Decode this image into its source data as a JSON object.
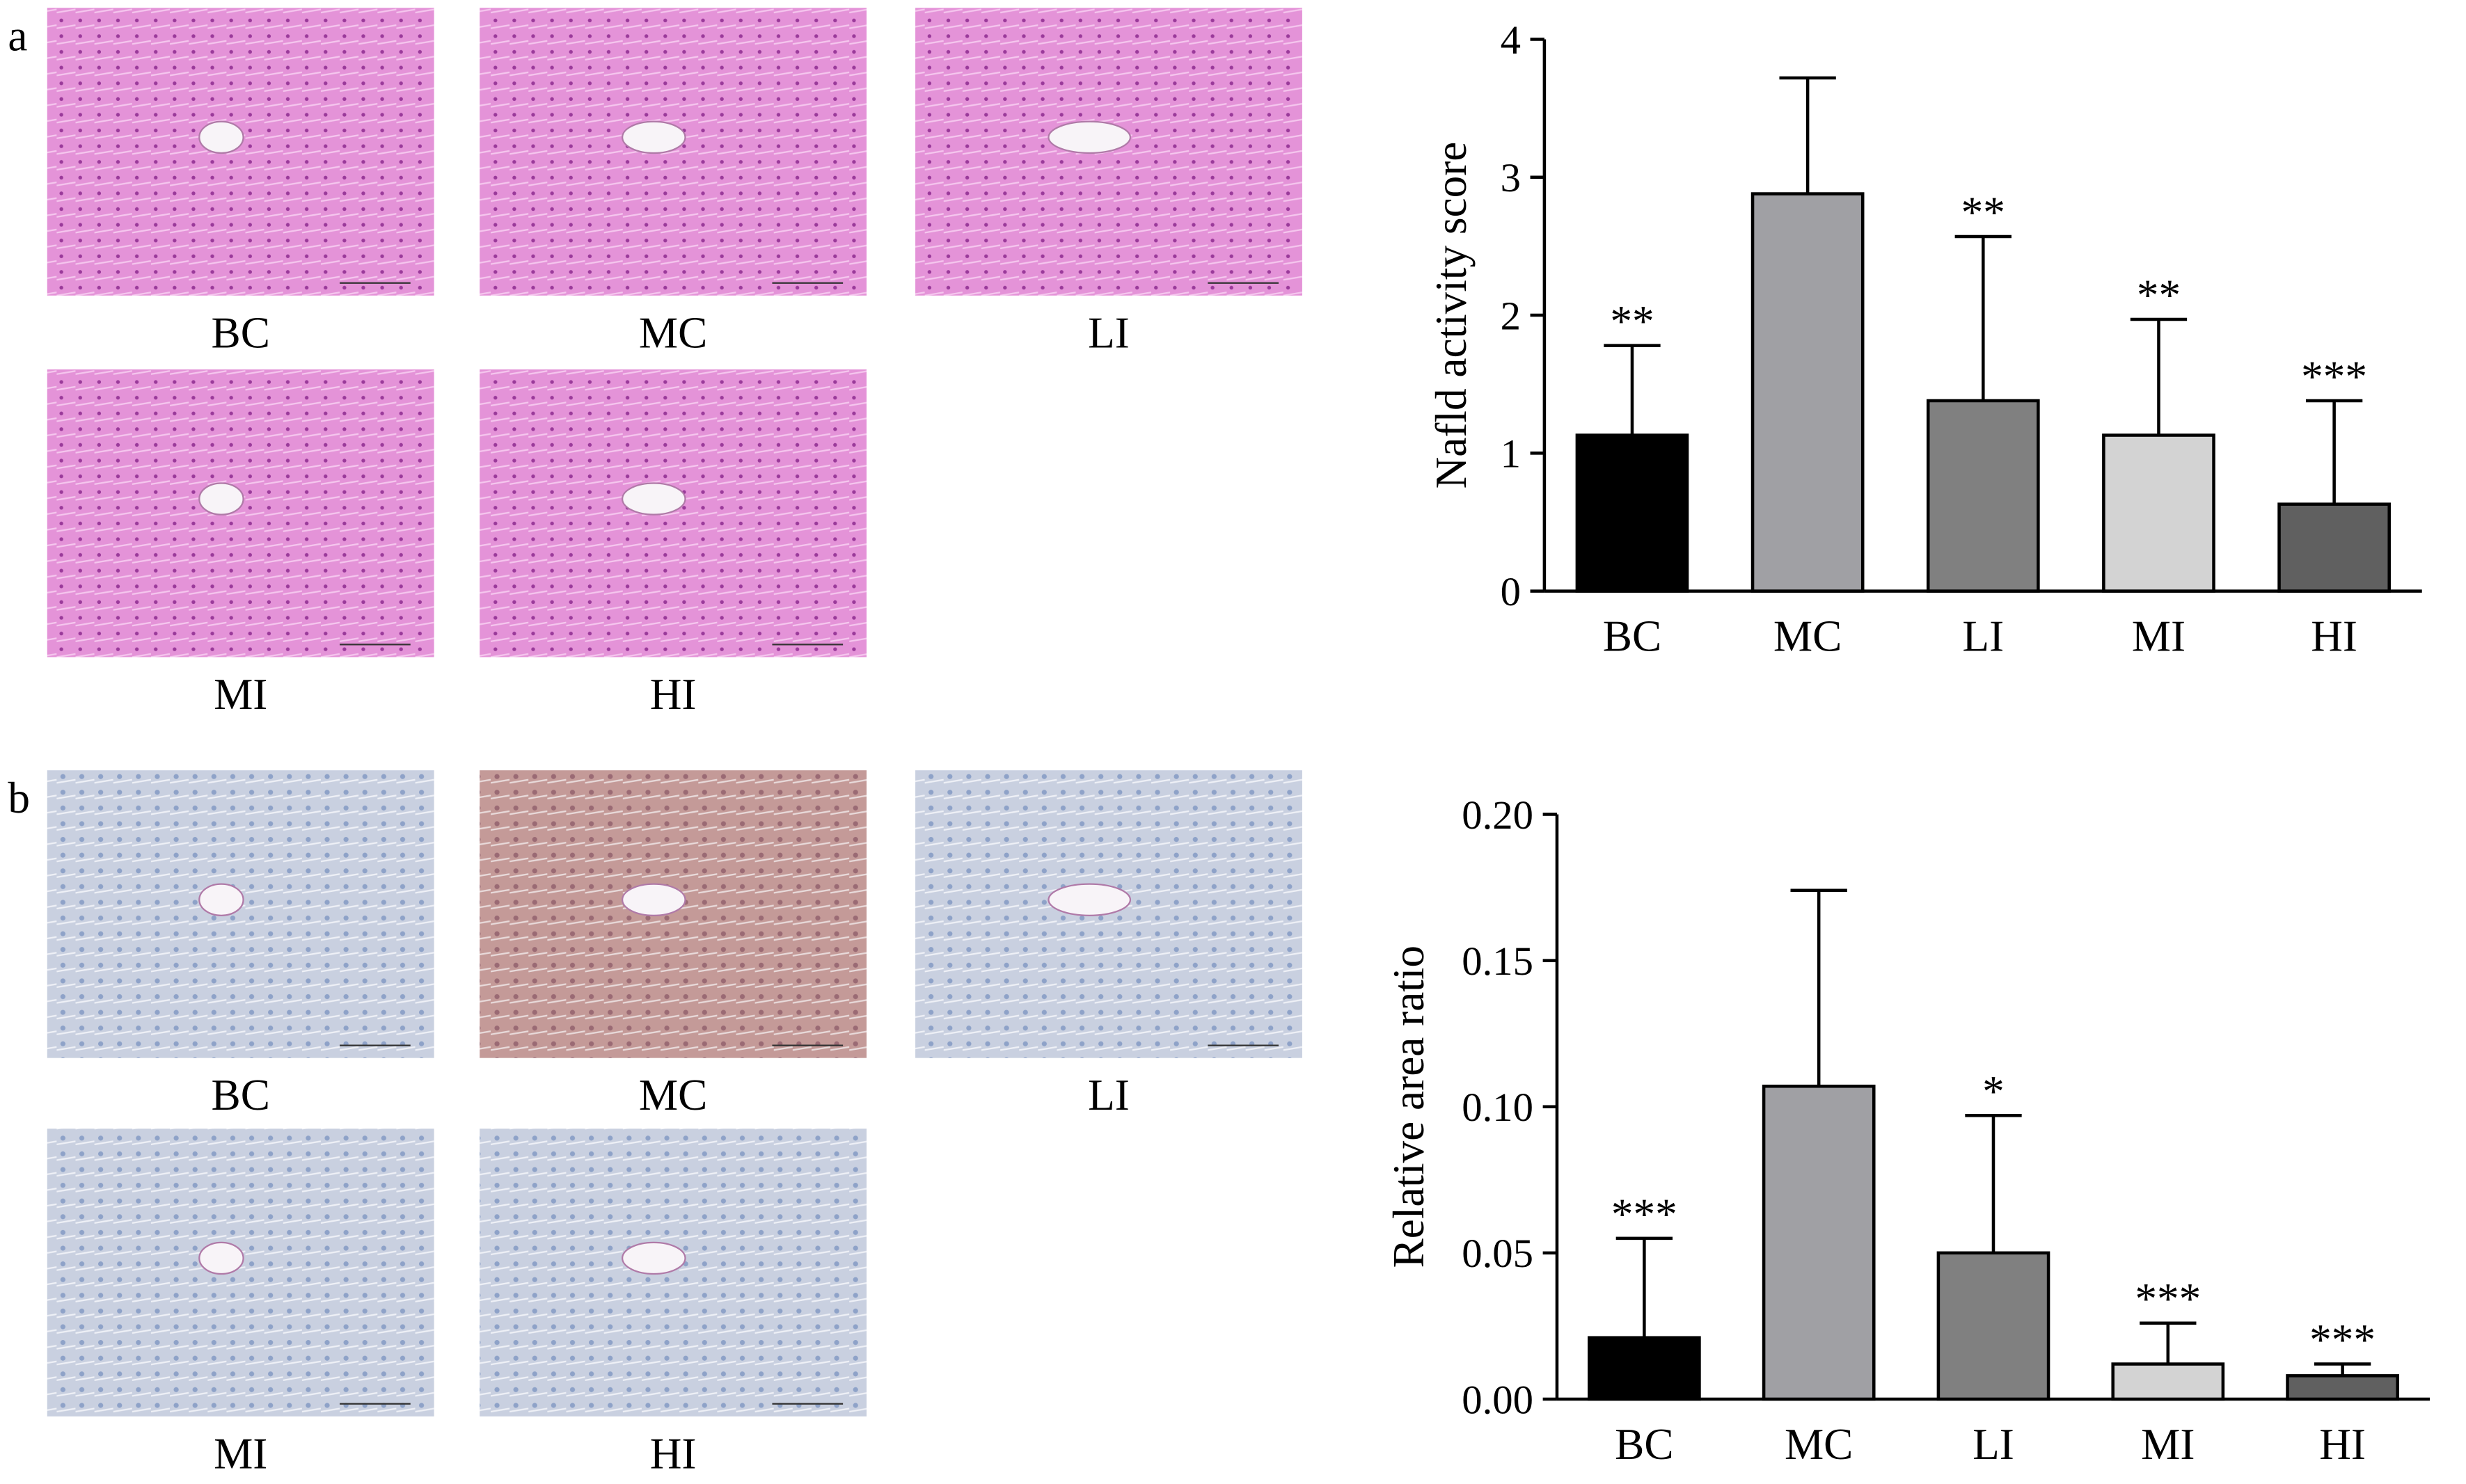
{
  "panels": [
    {
      "label": "a",
      "images": [
        "BC",
        "MC",
        "LI",
        "MI",
        "HI"
      ]
    },
    {
      "label": "b",
      "images": [
        "BC",
        "MC",
        "LI",
        "MI",
        "HI"
      ]
    }
  ],
  "chart_data": [
    {
      "type": "bar",
      "y_label": "Nafld activity score",
      "categories": [
        "BC",
        "MC",
        "LI",
        "MI",
        "HI"
      ],
      "values": [
        1.13,
        2.88,
        1.38,
        1.13,
        0.63
      ],
      "errors": [
        0.65,
        0.84,
        1.19,
        0.84,
        0.75
      ],
      "annotations": [
        "**",
        null,
        "**",
        "**",
        "***"
      ],
      "colors": [
        "#000000",
        "#a0a0a4",
        "#808080",
        "#d3d3d3",
        "#606060"
      ],
      "ylim": [
        0,
        4
      ],
      "yticks": [
        0,
        1,
        2,
        3,
        4
      ]
    },
    {
      "type": "bar",
      "y_label": "Relative area ratio",
      "categories": [
        "BC",
        "MC",
        "LI",
        "MI",
        "HI"
      ],
      "values": [
        0.021,
        0.107,
        0.05,
        0.012,
        0.008
      ],
      "errors": [
        0.034,
        0.067,
        0.047,
        0.014,
        0.004
      ],
      "annotations": [
        "***",
        null,
        "*",
        "***",
        "***"
      ],
      "colors": [
        "#000000",
        "#a0a0a4",
        "#808080",
        "#d3d3d3",
        "#606060"
      ],
      "ylim": [
        0,
        0.2
      ],
      "yticks": [
        {
          "value": 0,
          "label": "0.00"
        },
        {
          "value": 0.05,
          "label": "0.05"
        },
        {
          "value": 0.1,
          "label": "0.10"
        },
        {
          "value": 0.15,
          "label": "0.15"
        },
        {
          "value": 0.2,
          "label": "0.20"
        }
      ]
    }
  ]
}
